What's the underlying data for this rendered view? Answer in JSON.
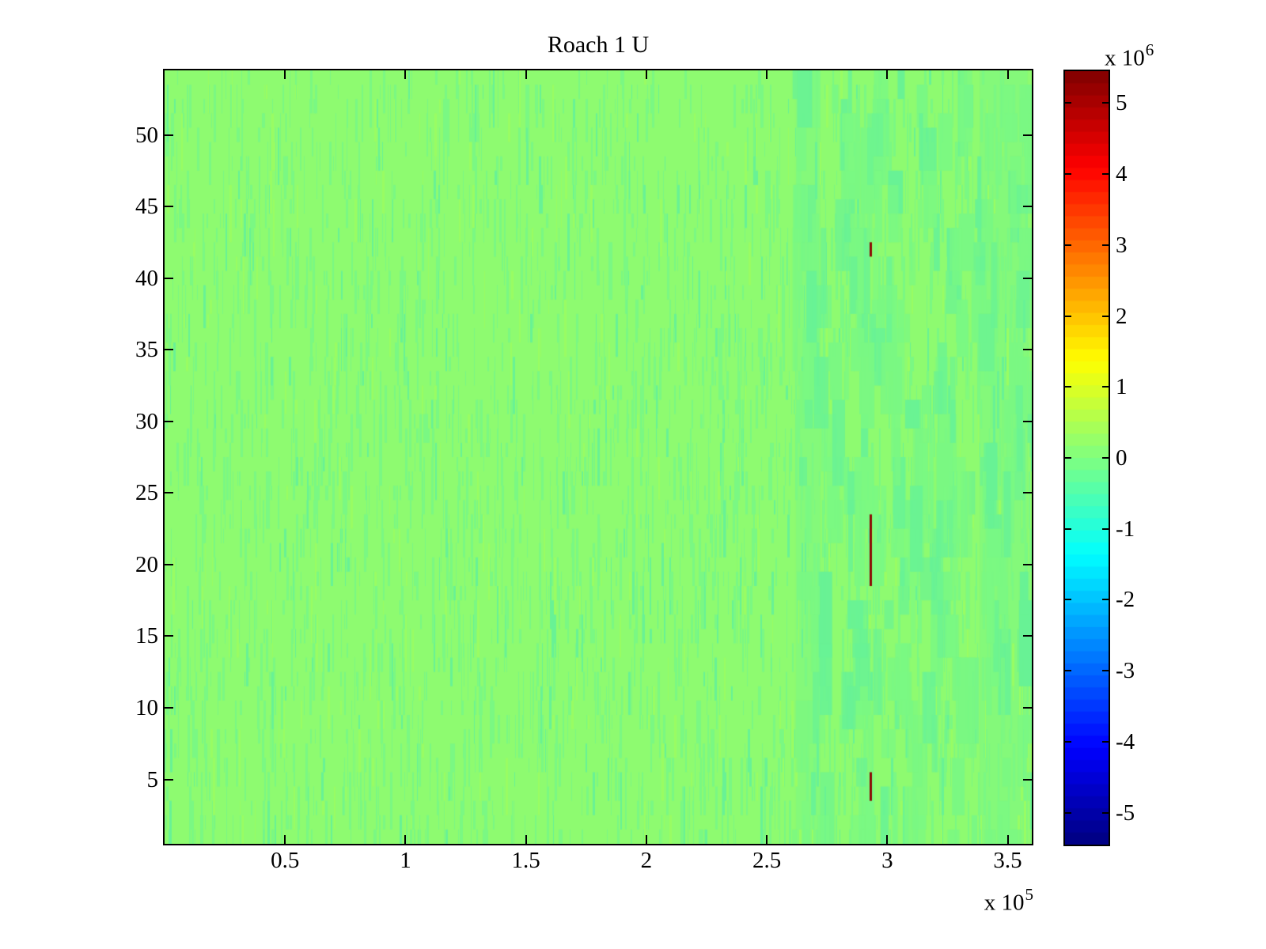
{
  "figure": {
    "background": "#ffffff",
    "axes_color": "#000000"
  },
  "chart_data": {
    "type": "heatmap",
    "title": "Roach 1 U",
    "x_axis": {
      "tick_labels": [
        "0.5",
        "1",
        "1.5",
        "2",
        "2.5",
        "3",
        "3.5"
      ],
      "tick_values": [
        0.5,
        1,
        1.5,
        2,
        2.5,
        3,
        3.5
      ],
      "range": [
        0,
        3.6
      ],
      "scale_base": "x 10",
      "scale_exp": "5"
    },
    "y_axis": {
      "tick_labels": [
        "5",
        "10",
        "15",
        "20",
        "25",
        "30",
        "35",
        "40",
        "45",
        "50"
      ],
      "tick_values": [
        5,
        10,
        15,
        20,
        25,
        30,
        35,
        40,
        45,
        50
      ],
      "range": [
        0.5,
        54.5
      ]
    },
    "colorbar": {
      "tick_labels": [
        "5",
        "4",
        "3",
        "2",
        "1",
        "0",
        "-1",
        "-2",
        "-3",
        "-4",
        "-5"
      ],
      "tick_values": [
        5,
        4,
        3,
        2,
        1,
        0,
        -1,
        -2,
        -3,
        -4,
        -5
      ],
      "range": [
        -5.45,
        5.45
      ],
      "scale_base": "x 10",
      "scale_exp": "6",
      "colormap": "jet",
      "levels": 64
    },
    "field": {
      "description": "Velocity field values near zero (light green, ~+0.2e6) with subtle teal vertical striping (~-0.2e6); blockier teal patches toward the right side",
      "rows": 54,
      "base_color": "#8efb70",
      "stripe_color": "#7af883",
      "stripe_color_deep": "#68f295",
      "stripe_color_light": "#99fc63",
      "noise_seed": 42,
      "fine_stripe_count": 3000,
      "block_count": 300,
      "blocky_start_frac": 0.72,
      "bands": [
        {
          "x0_frac": 0.728,
          "x1_frac": 0.756
        },
        {
          "x0_frac": 0.94,
          "x1_frac": 0.995
        }
      ]
    },
    "anomalies": [
      {
        "x": 2.93,
        "y_from": 18.5,
        "y_to": 23.5,
        "value": "max (~5.4e6)",
        "color": "#8b0a04"
      },
      {
        "x": 2.93,
        "y_from": 41.5,
        "y_to": 42.5,
        "value": "max (~5.4e6)",
        "color": "#8b0a04"
      },
      {
        "x": 2.93,
        "y_from": 3.5,
        "y_to": 5.5,
        "value": "max (~5.4e6)",
        "color": "#8b0a04"
      }
    ]
  }
}
